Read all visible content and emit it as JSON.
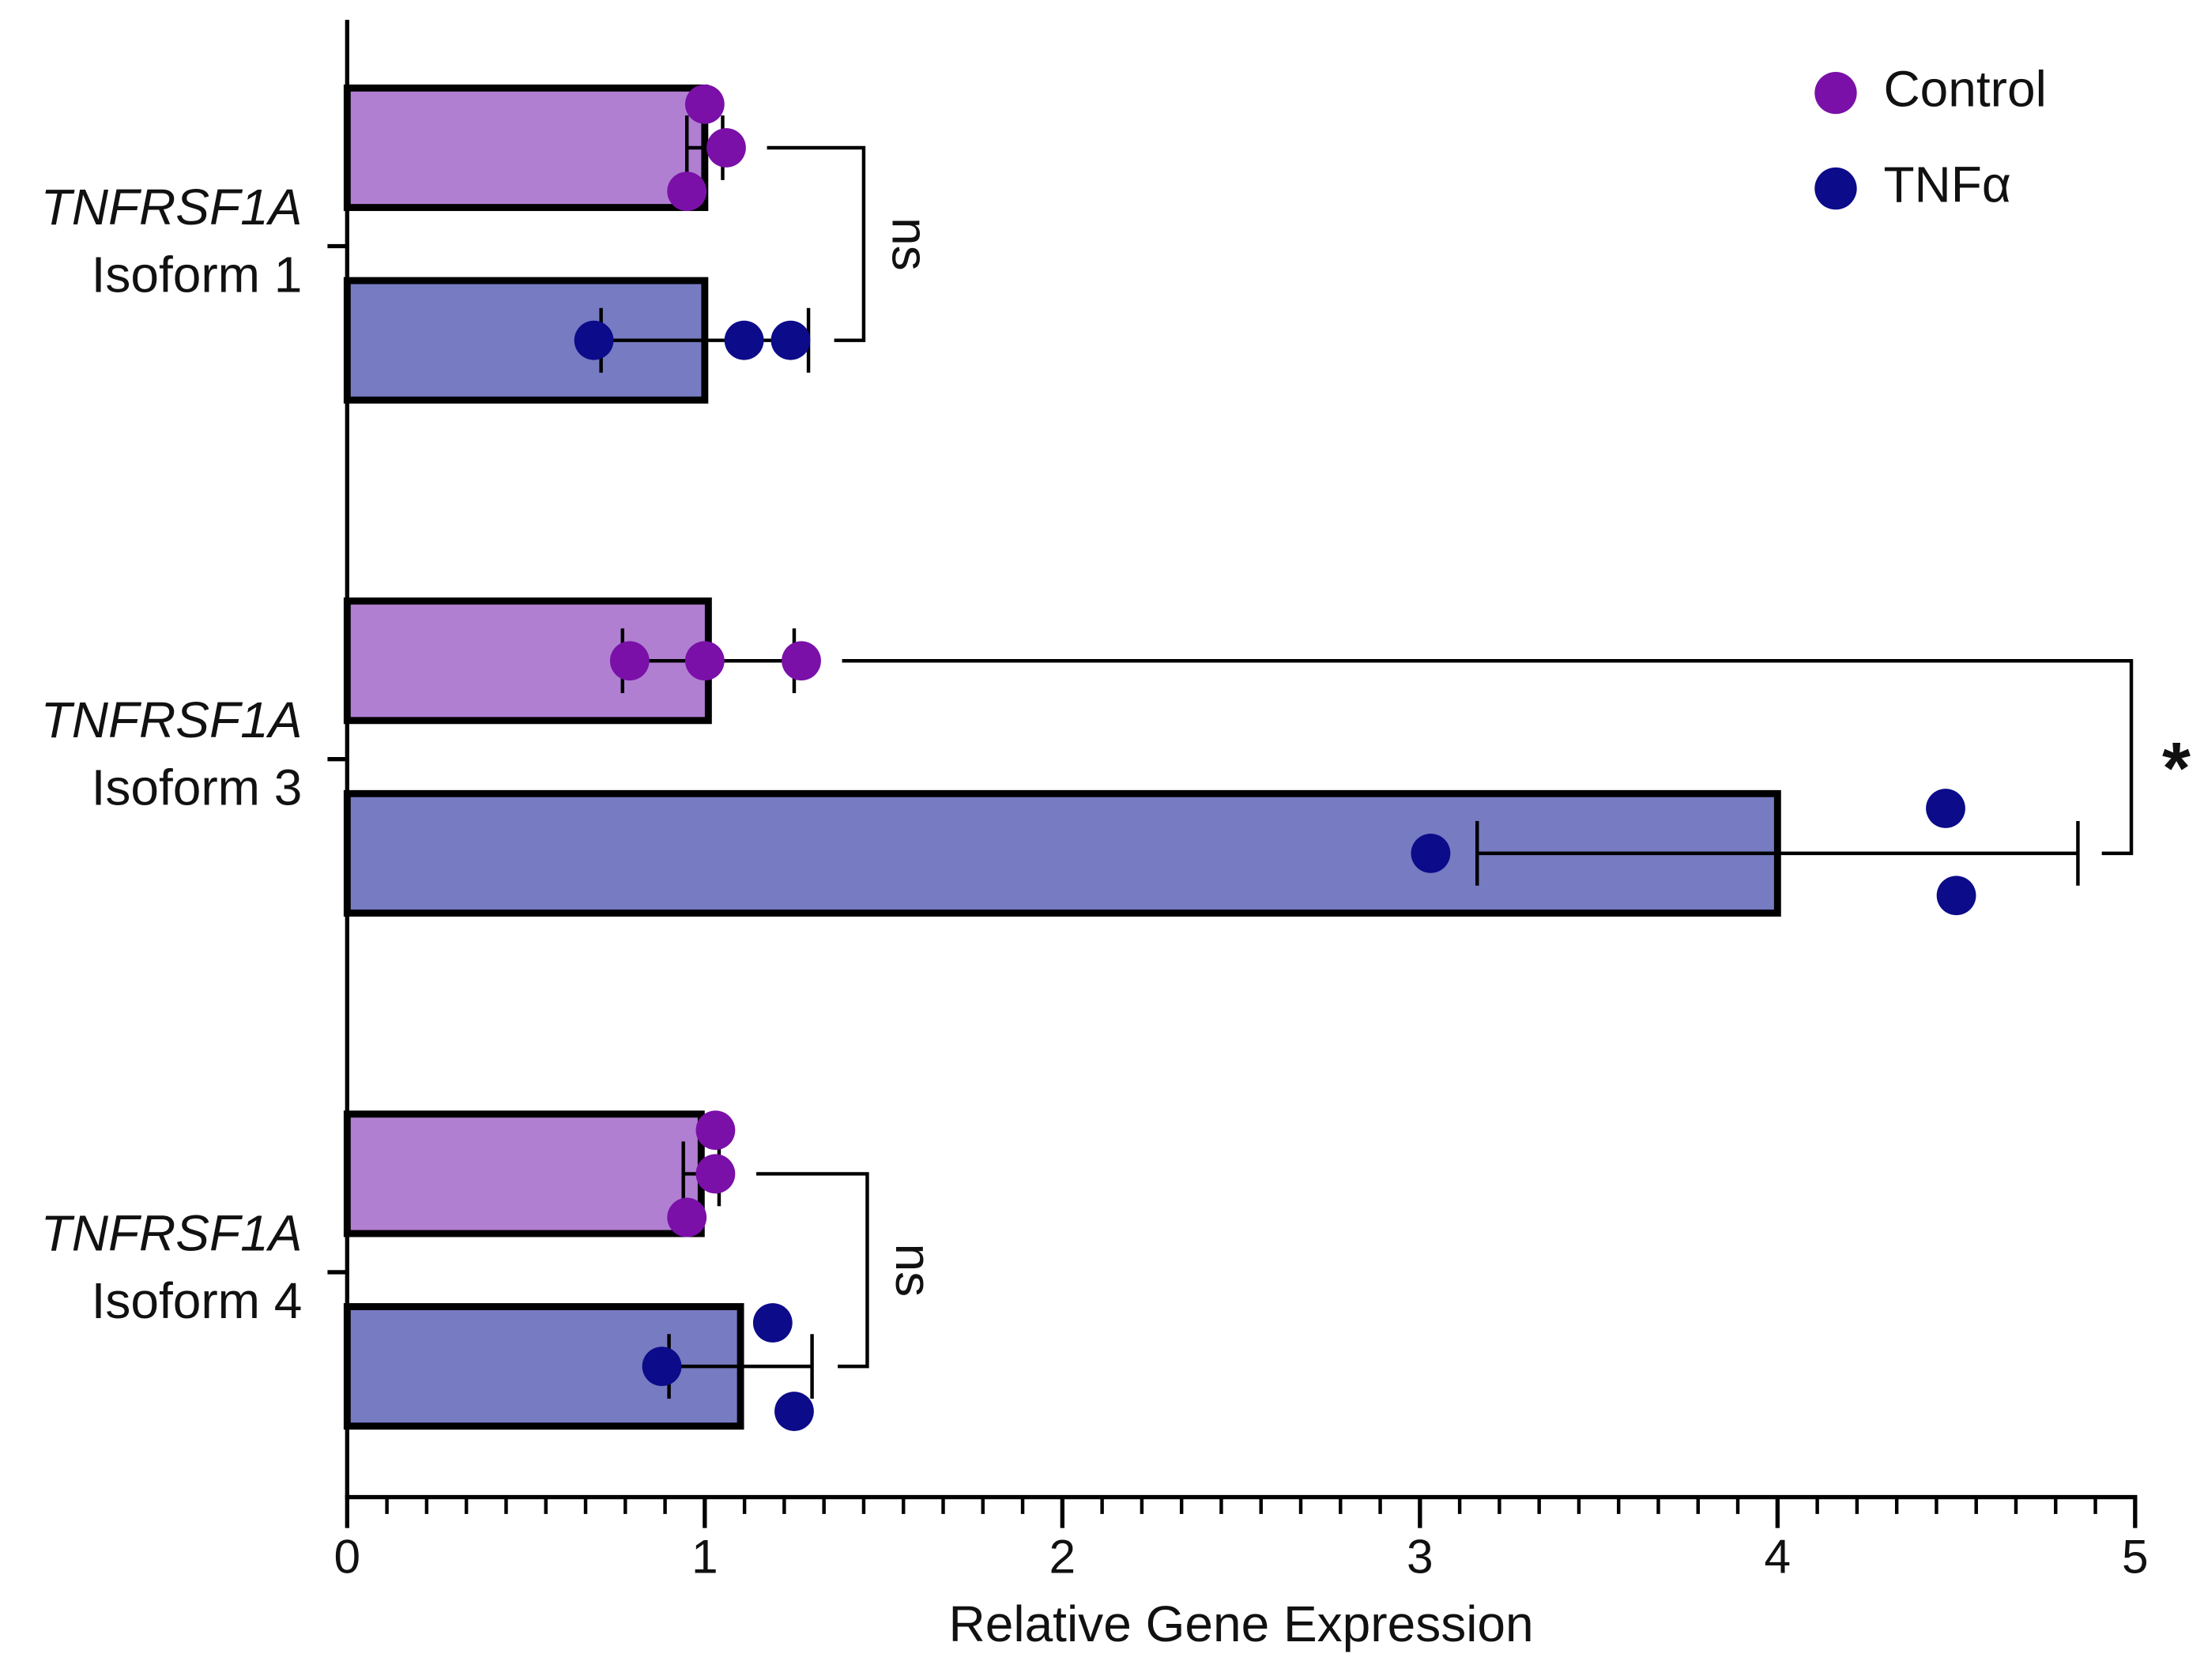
{
  "chart_data": {
    "type": "hbar",
    "xlabel": "Relative Gene Expression",
    "categories": [
      [
        "TNFRSF1A",
        "Isoform 1"
      ],
      [
        "TNFRSF1A",
        "Isoform 3"
      ],
      [
        "TNFRSF1A",
        "Isoform 4"
      ]
    ],
    "series": [
      {
        "name": "Control",
        "color": "#b07fd1",
        "point_color": "#7a10a8",
        "values": [
          1.0,
          1.01,
          0.99
        ],
        "errors": [
          0.05,
          0.24,
          0.05
        ],
        "points": [
          [
            1.0,
            1.06,
            0.95
          ],
          [
            0.79,
            1.0,
            1.27
          ],
          [
            1.03,
            1.03,
            0.95
          ]
        ]
      },
      {
        "name": "TNFα",
        "color": "#767bc2",
        "point_color": "#0c0b8a",
        "values": [
          1.0,
          4.0,
          1.1
        ],
        "errors": [
          0.29,
          0.84,
          0.2
        ],
        "points": [
          [
            0.69,
            1.11,
            1.24
          ],
          [
            3.03,
            4.47,
            4.5
          ],
          [
            0.88,
            1.19,
            1.25
          ]
        ]
      }
    ],
    "significance": [
      "ns",
      "*",
      "ns"
    ],
    "xlim": [
      0,
      5
    ],
    "xticks": [
      0,
      1,
      2,
      3,
      4,
      5
    ],
    "x_minor_divisions": 9,
    "legend": "top-right"
  }
}
